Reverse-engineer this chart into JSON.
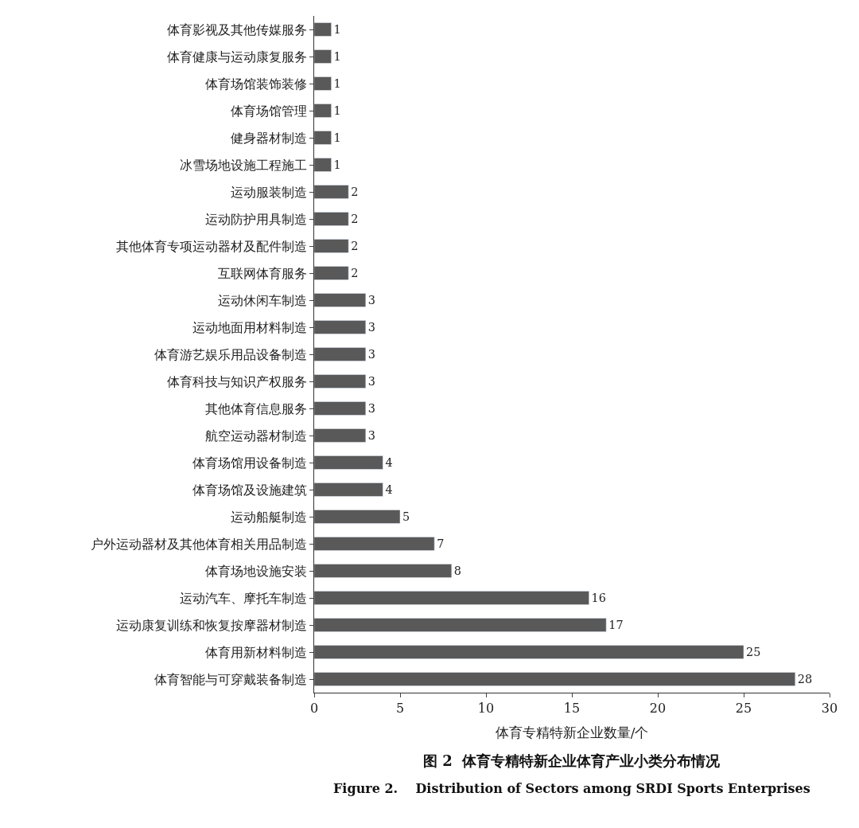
{
  "chart_data": {
    "type": "bar",
    "orientation": "horizontal",
    "title": "图 2  体育专精特新企业体育产业小类分布情况",
    "subtitle": "Figure 2.    Distribution of Sectors among SRDI Sports Enterprises",
    "xlabel": "体育专精特新企业数量/个",
    "categories": [
      "体育影视及其他传媒服务",
      "体育健康与运动康复服务",
      "体育场馆装饰装修",
      "体育场馆管理",
      "健身器材制造",
      "冰雪场地设施工程施工",
      "运动服装制造",
      "运动防护用具制造",
      "其他体育专项运动器材及配件制造",
      "互联网体育服务",
      "运动休闲车制造",
      "运动地面用材料制造",
      "体育游艺娱乐用品设备制造",
      "体育科技与知识产权服务",
      "其他体育信息服务",
      "航空运动器材制造",
      "体育场馆用设备制造",
      "体育场馆及设施建筑",
      "运动船艇制造",
      "户外运动器材及其他体育相关用品制造",
      "体育场地设施安装",
      "运动汽车、摩托车制造",
      "运动康复训练和恢复按摩器材制造",
      "体育用新材料制造",
      "体育智能与可穿戴装备制造"
    ],
    "values": [
      1,
      1,
      1,
      1,
      1,
      1,
      2,
      2,
      2,
      2,
      3,
      3,
      3,
      3,
      3,
      3,
      4,
      4,
      5,
      7,
      8,
      16,
      17,
      25,
      28
    ],
    "color": "#595959",
    "xlim": [
      0,
      30
    ],
    "xticks": [
      0,
      5,
      10,
      15,
      20,
      25,
      30
    ],
    "data_labels": true,
    "legend": false
  }
}
